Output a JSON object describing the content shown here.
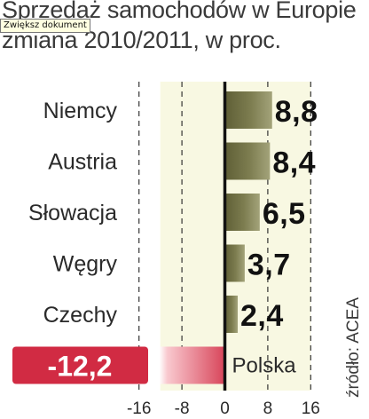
{
  "title_lines": [
    "Sprzedaż samochodów w Europie",
    "zmiana 2010/2011, w proc."
  ],
  "tooltip": "Zwiększ dokument",
  "source": "źródło: ACEA",
  "colors": {
    "positive": "#7a7a4c",
    "negative": "#d12b43",
    "panel": "#f8f8e2",
    "axis": "#111111"
  },
  "chart_data": {
    "type": "bar",
    "orientation": "horizontal",
    "title": "Sprzedaż samochodów w Europie",
    "subtitle": "zmiana 2010/2011, w proc.",
    "categories": [
      "Niemcy",
      "Austria",
      "Słowacja",
      "Węgry",
      "Czechy",
      "Polska"
    ],
    "values": [
      8.8,
      8.4,
      6.5,
      3.7,
      2.4,
      -12.2
    ],
    "value_labels": [
      "8,8",
      "8,4",
      "6,5",
      "3,7",
      "2,4",
      "-12,2"
    ],
    "xlim": [
      -16,
      16
    ],
    "xticks": [
      -16,
      -8,
      0,
      8,
      16
    ],
    "xtick_labels": [
      "-16",
      "-8",
      "0",
      "8",
      "16"
    ],
    "grid": "vertical dashed at -8 and 8",
    "legend": "none"
  }
}
